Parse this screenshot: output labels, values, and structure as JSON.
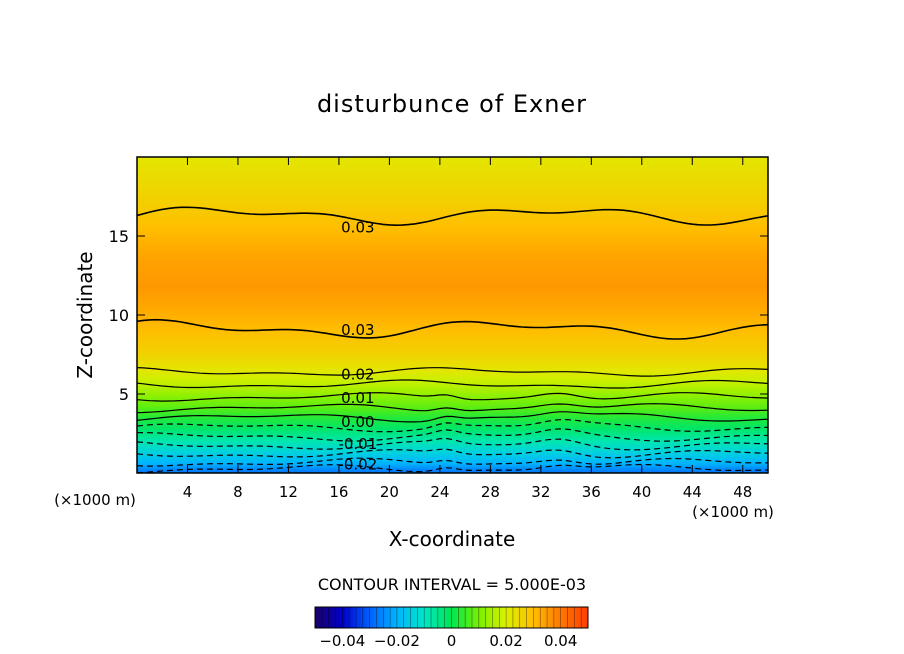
{
  "chart_data": {
    "type": "contour",
    "title": "disturbunce of Exner",
    "xlabel": "X-coordinate",
    "ylabel": "Z-coordinate",
    "x_unit_left": "(×1000 m)",
    "x_unit_right": "(×1000 m)",
    "xlim": [
      0,
      50
    ],
    "ylim": [
      0,
      20
    ],
    "xticks": [
      4,
      8,
      12,
      16,
      20,
      24,
      28,
      32,
      36,
      40,
      44,
      48
    ],
    "yticks": [
      5,
      10,
      15
    ],
    "contour_interval_text": "CONTOUR INTERVAL = 5.000E-03",
    "contour_interval": 0.005,
    "contour_line_labels": [
      {
        "text": "0.03",
        "x": 17.5,
        "z": 15.6
      },
      {
        "text": "0.03",
        "x": 17.5,
        "z": 9.1
      },
      {
        "text": "0.02",
        "x": 17.5,
        "z": 6.3
      },
      {
        "text": "0.01",
        "x": 17.5,
        "z": 4.8
      },
      {
        "text": "0.00",
        "x": 17.5,
        "z": 3.3
      },
      {
        "text": "-0.01",
        "x": 17.5,
        "z": 1.9
      },
      {
        "text": "-0.02",
        "x": 17.5,
        "z": 0.6
      }
    ],
    "profile_levels": [
      {
        "z": 0.0,
        "value": -0.028
      },
      {
        "z": 0.6,
        "value": -0.02
      },
      {
        "z": 1.3,
        "value": -0.014
      },
      {
        "z": 2.0,
        "value": -0.008
      },
      {
        "z": 2.8,
        "value": -0.002
      },
      {
        "z": 3.5,
        "value": 0.003
      },
      {
        "z": 4.2,
        "value": 0.008
      },
      {
        "z": 5.0,
        "value": 0.013
      },
      {
        "z": 5.8,
        "value": 0.018
      },
      {
        "z": 6.5,
        "value": 0.022
      },
      {
        "z": 7.5,
        "value": 0.026
      },
      {
        "z": 9.0,
        "value": 0.03
      },
      {
        "z": 10.5,
        "value": 0.0335
      },
      {
        "z": 11.8,
        "value": 0.0355
      },
      {
        "z": 13.5,
        "value": 0.034
      },
      {
        "z": 15.5,
        "value": 0.03
      },
      {
        "z": 17.5,
        "value": 0.026
      },
      {
        "z": 20.0,
        "value": 0.022
      }
    ],
    "colorbar": {
      "min": -0.05,
      "max": 0.05,
      "ticks": [
        {
          "value": -0.04,
          "label": "−0.04"
        },
        {
          "value": -0.02,
          "label": "−0.02"
        },
        {
          "value": 0.0,
          "label": "0"
        },
        {
          "value": 0.02,
          "label": "0.02"
        },
        {
          "value": 0.04,
          "label": "0.04"
        }
      ],
      "stops": [
        "#1a0066",
        "#0000c8",
        "#0060ff",
        "#00b4ff",
        "#00e6c8",
        "#00e650",
        "#78f000",
        "#dcf000",
        "#ffbe00",
        "#ff7800",
        "#ff3c00"
      ]
    }
  }
}
